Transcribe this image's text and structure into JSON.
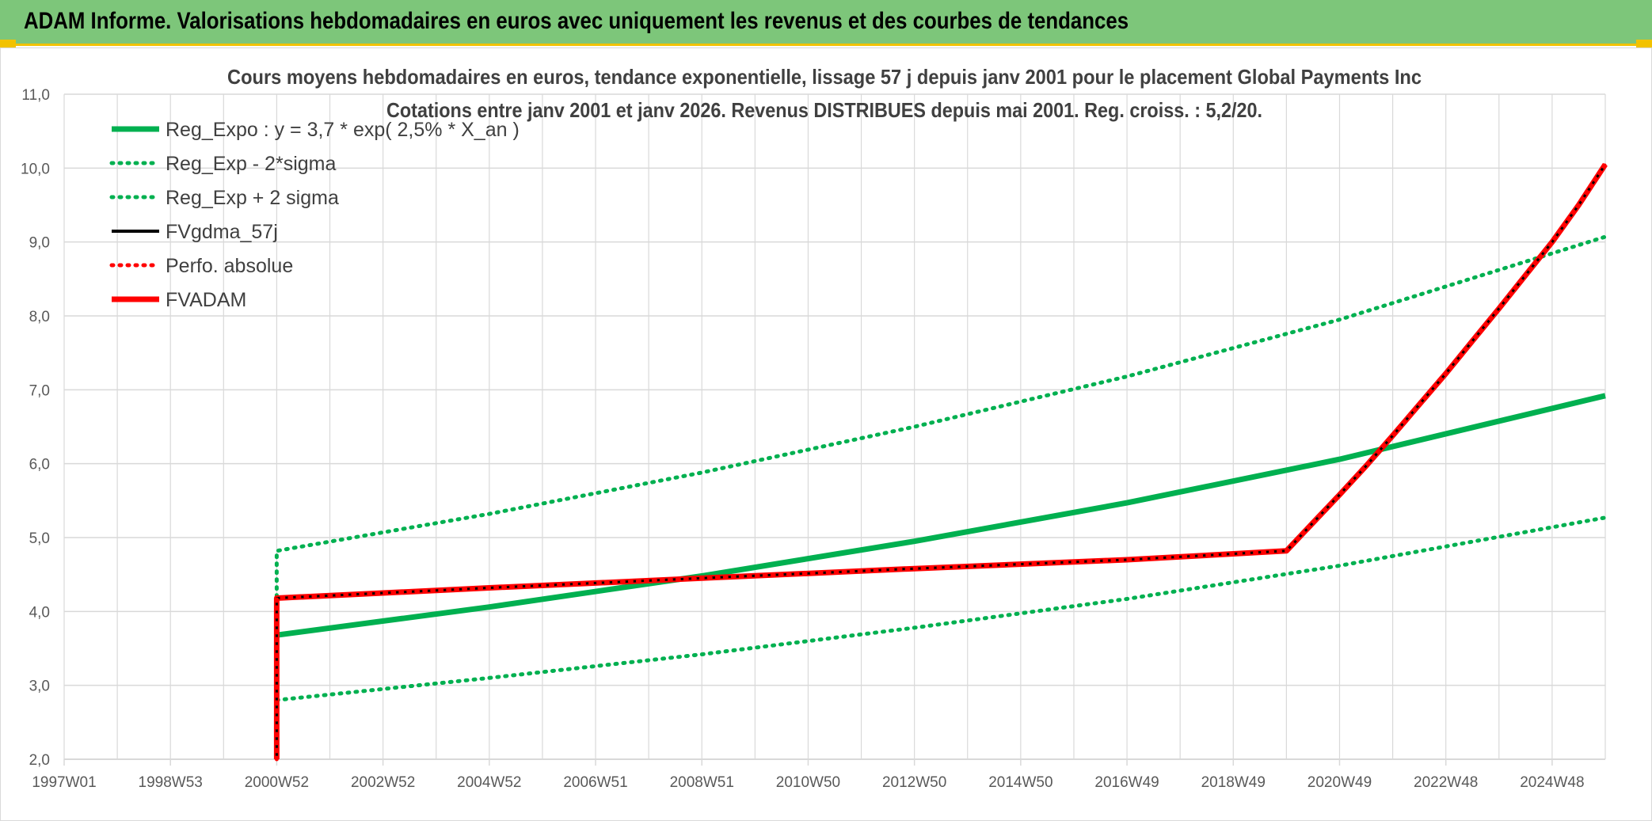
{
  "banner": {
    "title": "ADAM Informe. Valorisations hebdomadaires en euros avec uniquement les revenus et des courbes de tendances"
  },
  "colors": {
    "banner_bg": "#7dc67a",
    "accent": "#f2c200",
    "green": "#00b050",
    "red": "#ff0000",
    "black": "#000000",
    "grid": "#d9d9d9"
  },
  "chart_data": {
    "type": "line",
    "title_lines": [
      "Cours moyens hebdomadaires en euros, tendance exponentielle, lissage 57 j depuis janv 2001 pour le placement Global Payments Inc",
      "Cotations entre janv 2001 et janv 2026. Revenus DISTRIBUES depuis mai 2001. Reg. croiss. : 5,2/20."
    ],
    "xlabel": "",
    "ylabel": "",
    "x_tick_labels": [
      "1997W01",
      "1998W53",
      "2000W52",
      "2002W52",
      "2004W52",
      "2006W51",
      "2008W51",
      "2010W50",
      "2012W50",
      "2014W50",
      "2016W49",
      "2018W49",
      "2020W49",
      "2022W48",
      "2024W48"
    ],
    "x_tick_years": [
      1997.0,
      1999.0,
      2001.0,
      2003.0,
      2005.0,
      2007.0,
      2009.0,
      2011.0,
      2013.0,
      2015.0,
      2017.0,
      2019.0,
      2021.0,
      2023.0,
      2025.0
    ],
    "xlim": [
      1997.0,
      2026.0
    ],
    "ylim": [
      2.0,
      11.0
    ],
    "y_ticks": [
      2,
      3,
      4,
      5,
      6,
      7,
      8,
      9,
      10,
      11
    ],
    "y_tick_labels": [
      "2,0",
      "3,0",
      "4,0",
      "5,0",
      "6,0",
      "7,0",
      "8,0",
      "9,0",
      "10,0",
      "11,0"
    ],
    "grid": true,
    "legend_position": "top-left",
    "legend": [
      "Reg_Expo : y = 3,7 * exp( 2,5% *  X_an )",
      "Reg_Exp - 2*sigma",
      "Reg_Exp + 2 sigma",
      "FVgdma_57j",
      "Perfo. absolue",
      "FVADAM"
    ],
    "series": [
      {
        "name": "Reg_Expo : y = 3,7 * exp( 2,5% *  X_an )",
        "color": "#00b050",
        "style": "solid",
        "x": [
          2001.0,
          2005.0,
          2009.0,
          2013.0,
          2017.0,
          2021.0,
          2026.0
        ],
        "y": [
          3.68,
          4.06,
          4.48,
          4.95,
          5.47,
          6.06,
          6.92
        ]
      },
      {
        "name": "Reg_Exp - 2*sigma",
        "color": "#00b050",
        "style": "dotted",
        "x": [
          2001.0,
          2005.0,
          2009.0,
          2013.0,
          2017.0,
          2021.0,
          2026.0
        ],
        "y": [
          2.8,
          3.1,
          3.42,
          3.78,
          4.17,
          4.62,
          5.27
        ]
      },
      {
        "name": "Reg_Exp + 2 sigma",
        "color": "#00b050",
        "style": "dotted",
        "x": [
          2001.0,
          2001.0,
          2005.0,
          2009.0,
          2013.0,
          2017.0,
          2021.0,
          2026.0
        ],
        "y": [
          4.2,
          4.82,
          5.32,
          5.88,
          6.5,
          7.18,
          7.95,
          9.07
        ]
      },
      {
        "name": "FVgdma_57j",
        "color": "#000000",
        "style": "solid",
        "x": [
          2001.0,
          2001.0,
          2005.0,
          2009.0,
          2013.0,
          2017.0,
          2020.0,
          2020.5,
          2021.0,
          2021.5,
          2022.0,
          2022.5,
          2023.0,
          2023.5,
          2024.0,
          2024.5,
          2025.0,
          2025.5,
          2026.0
        ],
        "y": [
          2.0,
          4.18,
          4.32,
          4.45,
          4.58,
          4.7,
          4.82,
          5.2,
          5.58,
          5.97,
          6.38,
          6.8,
          7.22,
          7.66,
          8.1,
          8.55,
          9.0,
          9.5,
          10.05
        ]
      },
      {
        "name": "Perfo. absolue",
        "color": "#ff0000",
        "style": "dotted",
        "x": [
          2001.0,
          2001.0,
          2005.0,
          2009.0,
          2013.0,
          2017.0,
          2020.0,
          2020.5,
          2021.0,
          2021.5,
          2022.0,
          2022.5,
          2023.0,
          2023.5,
          2024.0,
          2024.5,
          2025.0,
          2025.5,
          2026.0
        ],
        "y": [
          2.0,
          4.18,
          4.32,
          4.45,
          4.58,
          4.7,
          4.82,
          5.2,
          5.58,
          5.97,
          6.38,
          6.8,
          7.22,
          7.66,
          8.1,
          8.55,
          9.0,
          9.5,
          10.05
        ]
      },
      {
        "name": "FVADAM",
        "color": "#ff0000",
        "style": "solid",
        "x": [
          2001.0,
          2001.0,
          2005.0,
          2009.0,
          2013.0,
          2017.0,
          2020.0,
          2020.5,
          2021.0,
          2021.5,
          2022.0,
          2022.5,
          2023.0,
          2023.5,
          2024.0,
          2024.5,
          2025.0,
          2025.5,
          2026.0
        ],
        "y": [
          2.0,
          4.18,
          4.32,
          4.45,
          4.58,
          4.7,
          4.82,
          5.2,
          5.58,
          5.97,
          6.38,
          6.8,
          7.22,
          7.66,
          8.1,
          8.55,
          9.0,
          9.5,
          10.05
        ]
      }
    ]
  }
}
